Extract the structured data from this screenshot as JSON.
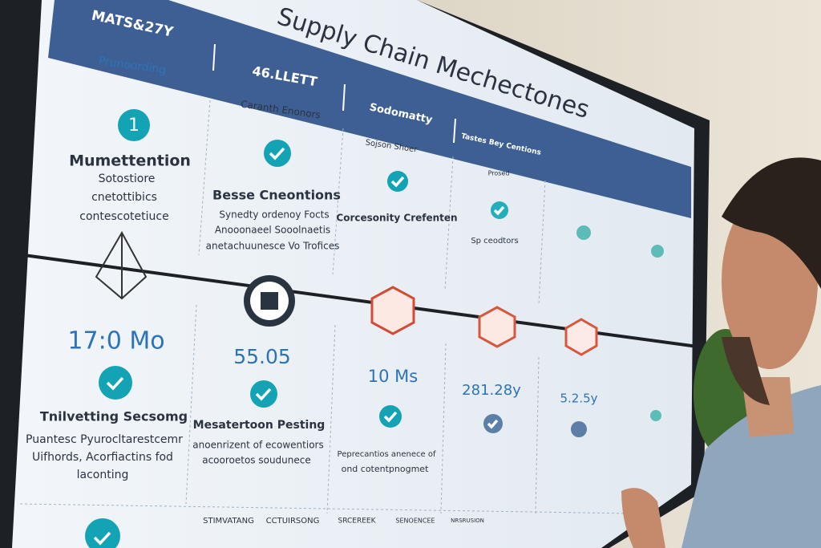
{
  "header": {
    "title": "Supply Chain Mechectones",
    "tabs": [
      "MATS&27Y",
      "46.LLETT",
      "Sodomatty",
      "Tastes Bey Centions"
    ],
    "sublabels": [
      "Prunoording",
      "Caranth Enonors",
      "Sojson Shoer",
      "Prosed"
    ]
  },
  "top_row": [
    {
      "marker": "1",
      "heading": "Mumettention",
      "body": [
        "Sotostiore",
        "cnetottibics",
        "contescotetiuce"
      ]
    },
    {
      "heading": "Besse Cneontions",
      "body": [
        "Synedty ordenoy Focts",
        "Anooonaeel Sooolnaetis",
        "anetachuunesce Vo Trofices"
      ]
    },
    {
      "heading": "Corcesonity Crefenten"
    },
    {
      "heading": "Sp ceodtors"
    }
  ],
  "middle_row": [
    {
      "metric": "17:0 Mo",
      "heading": "Tnilvetting Secsomg",
      "body": [
        "Puantesc Pyurocltarestcemr",
        "Uifhords, Acorfiactins fod",
        "laconting"
      ]
    },
    {
      "metric": "55.05",
      "heading": "Mesatertoon Pesting",
      "body": [
        "anoenrizent of ecowentiors",
        "acooroetos soudunece"
      ]
    },
    {
      "metric": "10 Ms",
      "body": [
        "Peprecantios anenece of",
        "ond cotentpnogmet"
      ]
    },
    {
      "metric": "281.28y"
    },
    {
      "metric": "5.2.5y"
    }
  ],
  "bottom_row": [
    "STIMVATANG",
    "CCTUIRSONG",
    "SRCEREEK",
    "SENOENCEE",
    "NRSRUSION"
  ]
}
